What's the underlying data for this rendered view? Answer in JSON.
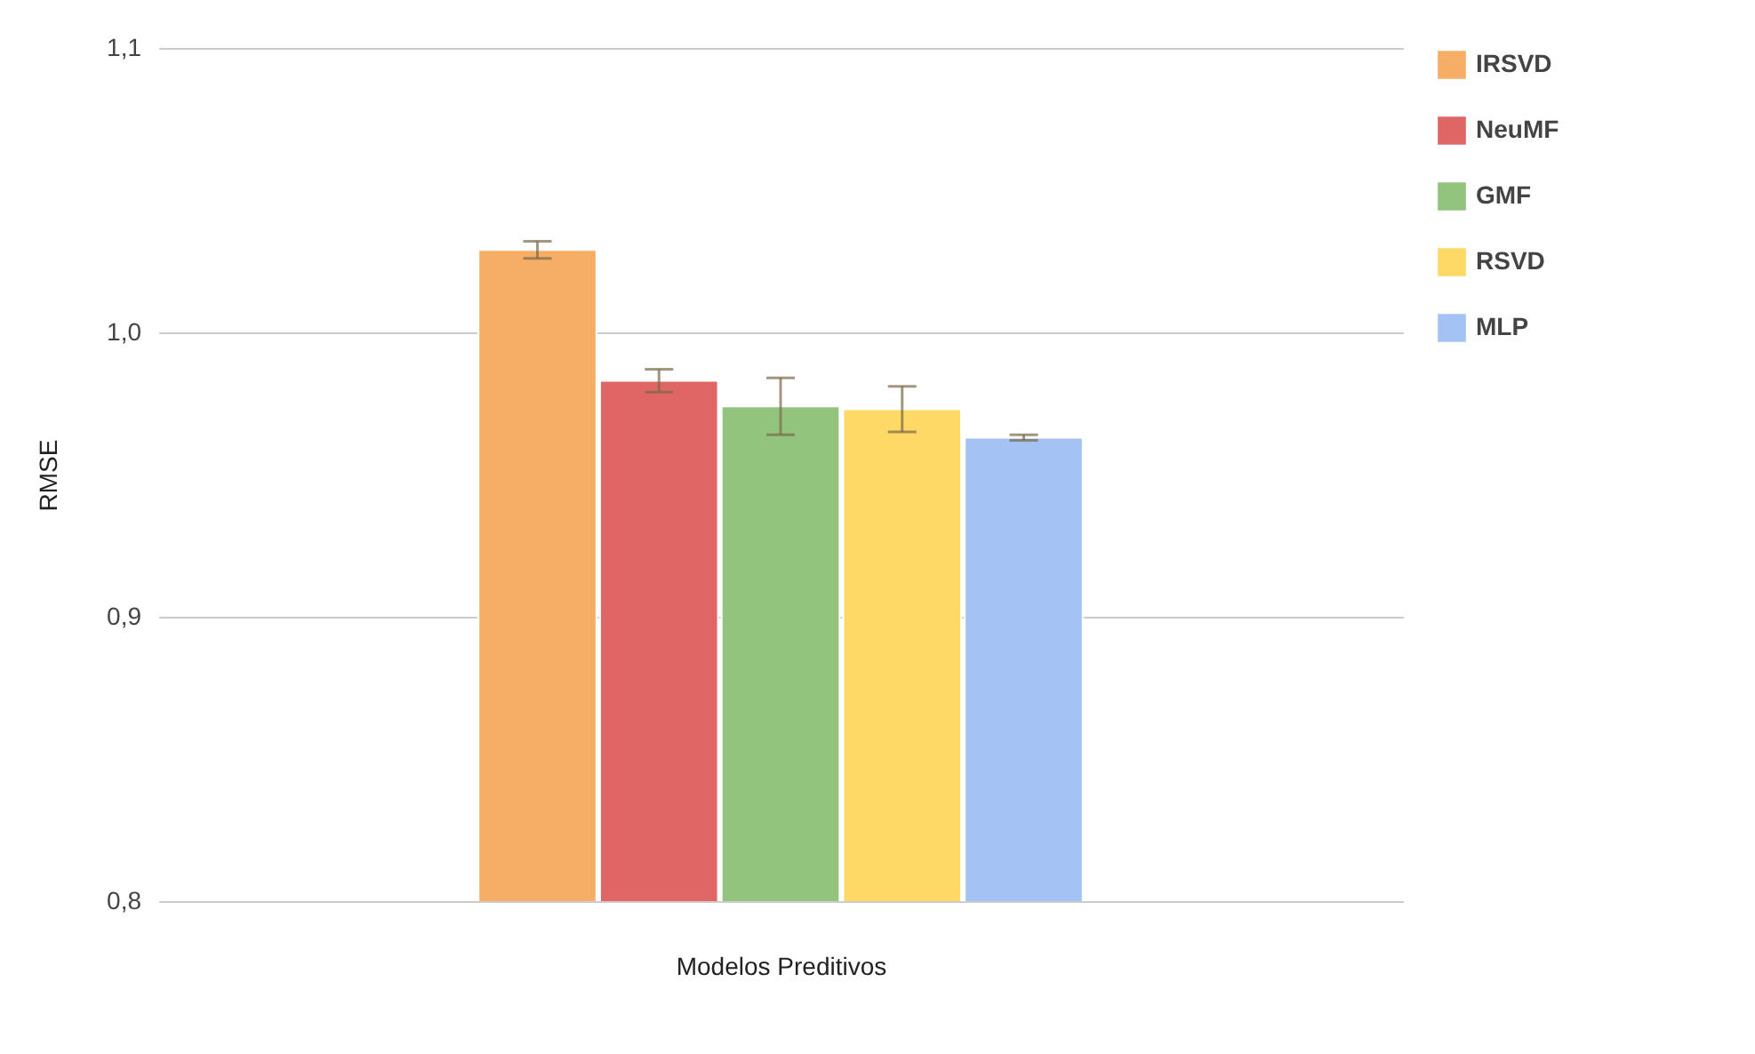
{
  "chart_data": {
    "type": "bar",
    "xlabel": "Modelos Preditivos",
    "ylabel": "RMSE",
    "categories": [
      null
    ],
    "series": [
      {
        "name": "IRSVD",
        "color": "#f6ae66",
        "values": [
          1.029
        ],
        "errors": [
          0.003
        ]
      },
      {
        "name": "NeuMF",
        "color": "#e06666",
        "values": [
          0.983
        ],
        "errors": [
          0.004
        ]
      },
      {
        "name": "GMF",
        "color": "#93c47d",
        "values": [
          0.974
        ],
        "errors": [
          0.01
        ]
      },
      {
        "name": "RSVD",
        "color": "#ffd966",
        "values": [
          0.973
        ],
        "errors": [
          0.008
        ]
      },
      {
        "name": "MLP",
        "color": "#a4c2f4",
        "values": [
          0.963
        ],
        "errors": [
          0.001
        ]
      }
    ],
    "ylim": [
      0.8,
      1.1
    ],
    "yticks": [
      {
        "value": 0.8,
        "label": "0,8"
      },
      {
        "value": 0.9,
        "label": "0,9"
      },
      {
        "value": 1.0,
        "label": "1,0"
      },
      {
        "value": 1.1,
        "label": "1,1"
      }
    ],
    "grid": "y",
    "legend": "top right",
    "tick_labels": "y"
  }
}
